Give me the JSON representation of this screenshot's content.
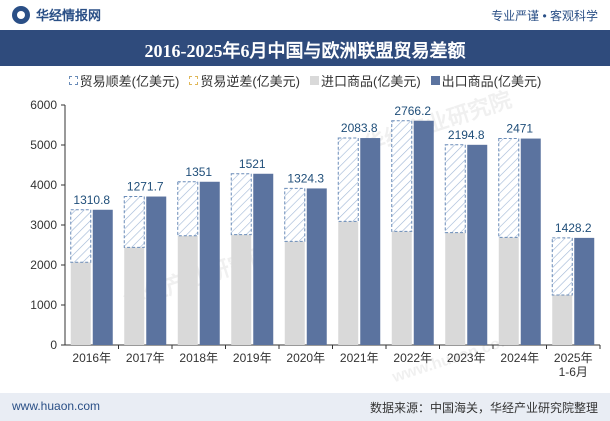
{
  "header": {
    "brand": "华经情报网",
    "slogan": "专业严谨 • 客观科学"
  },
  "chart_data": {
    "type": "bar",
    "title": "2016-2025年6月中国与欧洲联盟贸易差额",
    "categories": [
      "2016年",
      "2017年",
      "2018年",
      "2019年",
      "2020年",
      "2021年",
      "2022年",
      "2023年",
      "2024年",
      "2025年\n1-6月"
    ],
    "series": [
      {
        "name": "贸易顺差(亿美元)",
        "values": [
          1310.8,
          1271.7,
          1351,
          1521,
          1324.3,
          2083.8,
          2766.2,
          2194.8,
          2471,
          1428.2
        ]
      },
      {
        "name": "贸易逆差(亿美元)",
        "values": [
          null,
          null,
          null,
          null,
          null,
          null,
          null,
          null,
          null,
          null
        ]
      },
      {
        "name": "进口商品(亿美元)",
        "values": [
          2070,
          2440,
          2730,
          2760,
          2590,
          3090,
          2840,
          2810,
          2690,
          1250
        ]
      },
      {
        "name": "出口商品(亿美元)",
        "values": [
          3380.8,
          3711.7,
          4081,
          4281,
          3914.3,
          5173.8,
          5606.2,
          5004.8,
          5161,
          2678.2
        ]
      }
    ],
    "ylim": [
      0,
      6000
    ],
    "yticks": [
      0,
      1000,
      2000,
      3000,
      4000,
      5000,
      6000
    ],
    "legend_position": "top",
    "grid": false,
    "colors": {
      "surplus_outline": "#6a8cb8",
      "deficit_outline": "#e0b85a",
      "import": "#d9d9d9",
      "export": "#5b739f",
      "label": "#1f4e79"
    }
  },
  "footer": {
    "site": "www.huaon.com",
    "source": "数据来源：中国海关，华经产业研究院整理"
  },
  "watermarks": [
    "华经产业研究院",
    "www.huaon.com"
  ]
}
